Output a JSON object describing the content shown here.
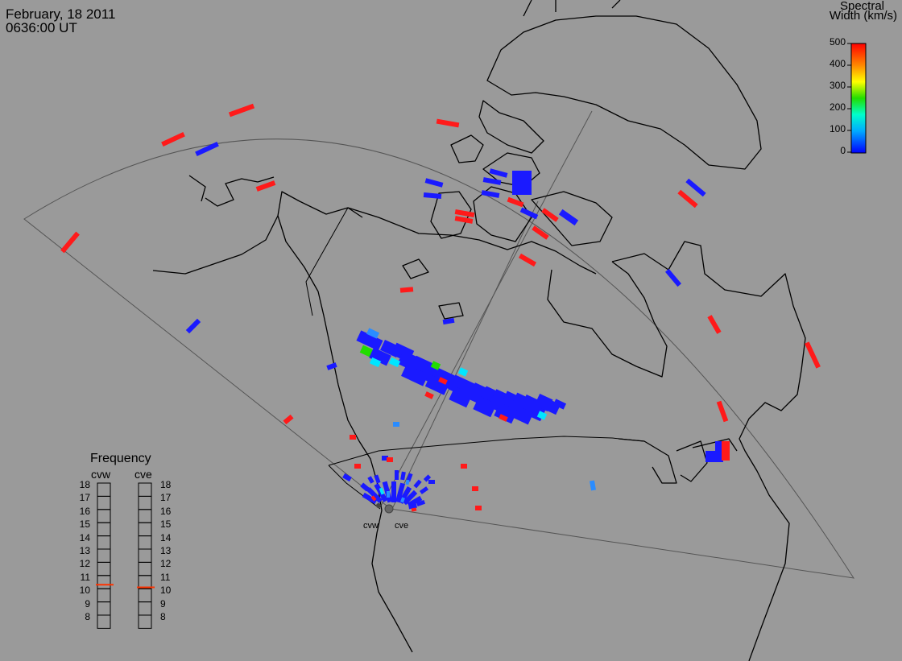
{
  "header": {
    "date": "February, 18 2011",
    "time": "0636:00 UT"
  },
  "colorbar": {
    "title_line1": "Spectral",
    "title_line2": "Width (km/s)",
    "ticks": [
      "500",
      "400",
      "300",
      "200",
      "100",
      "0"
    ],
    "colors": [
      "#ff0000",
      "#ff8800",
      "#ffff00",
      "#00dd00",
      "#00ffff",
      "#0000ff"
    ]
  },
  "frequency_panel": {
    "title": "Frequency",
    "columns": [
      {
        "label": "cvw",
        "selected_mhz": 10.8
      },
      {
        "label": "cve",
        "selected_mhz": 10.6
      }
    ],
    "scale": [
      "18",
      "17",
      "16",
      "15",
      "14",
      "13",
      "12",
      "11",
      "10",
      "9",
      "8"
    ],
    "indicator_color": "#ff3300"
  },
  "sites": [
    "cvw",
    "cve"
  ],
  "colors": {
    "background": "#9a9a9a",
    "coastline": "#000000",
    "fov_outline": "#555555",
    "echo_low_width": "#1a1aff",
    "echo_high_width": "#ff1a1a"
  }
}
